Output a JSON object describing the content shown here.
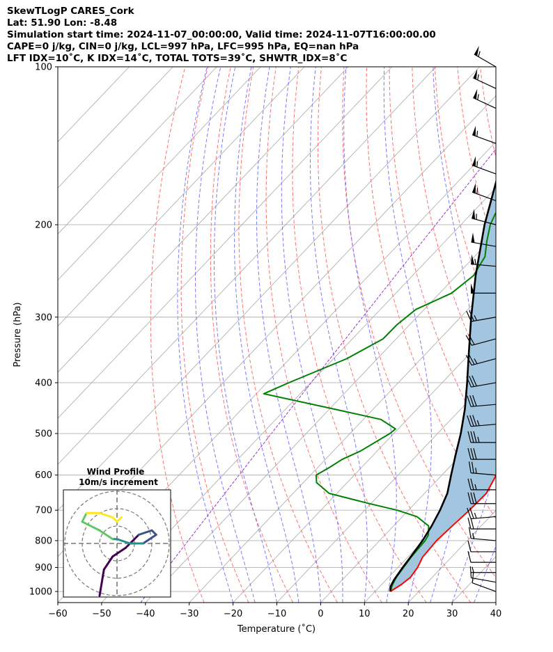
{
  "header": {
    "line1": "SkewTLogP CARES_Cork",
    "line2": "Lat: 51.90   Lon: -8.48",
    "line3": "Simulation start time: 2024-11-07_00:00:00, Valid time: 2024-11-07T16:00:00.00",
    "line4": "CAPE=0 j/kg, CIN=0 j/kg, LCL=997 hPa, LFC=995 hPa, EQ=nan hPa",
    "line5": "LFT IDX=10˚C, K IDX=14˚C, TOTAL TOTS=39˚C, SHWTR_IDX=8˚C"
  },
  "chart_data": {
    "type": "line",
    "subtype": "skew-T log-P",
    "xlabel": "Temperature (˚C)",
    "ylabel": "Pressure (hPa)",
    "xlim": [
      -60,
      40
    ],
    "ylim": [
      1050,
      100
    ],
    "y_scale": "log",
    "x_ticks": [
      -60,
      -50,
      -40,
      -30,
      -20,
      -10,
      0,
      10,
      20,
      30,
      40
    ],
    "y_ticks": [
      1000,
      900,
      800,
      700,
      600,
      500,
      400,
      300,
      200,
      100
    ],
    "grid": true,
    "series": [
      {
        "key": "temperature",
        "color": "#ff0000",
        "points": [
          [
            1000,
            13.5
          ],
          [
            970,
            14.5
          ],
          [
            940,
            15.0
          ],
          [
            900,
            14.5
          ],
          [
            860,
            13.4
          ],
          [
            800,
            13.0
          ],
          [
            750,
            13.4
          ],
          [
            700,
            13.9
          ],
          [
            650,
            14.1
          ],
          [
            600,
            12.4
          ],
          [
            560,
            10.4
          ],
          [
            530,
            8.1
          ],
          [
            500,
            6.3
          ],
          [
            470,
            4.6
          ],
          [
            440,
            3.7
          ],
          [
            410,
            1.6
          ],
          [
            380,
            -1.6
          ],
          [
            350,
            -5.6
          ],
          [
            320,
            -10.0
          ],
          [
            290,
            -15.2
          ],
          [
            270,
            -19.1
          ],
          [
            250,
            -21.6
          ],
          [
            230,
            -23.4
          ],
          [
            215,
            -27.2
          ],
          [
            200,
            -31.3
          ],
          [
            190,
            -33.5
          ],
          [
            180,
            -34.5
          ],
          [
            170,
            -33.0
          ],
          [
            160,
            -34.8
          ],
          [
            150,
            -36.7
          ],
          [
            140,
            -39.8
          ],
          [
            130,
            -42.0
          ],
          [
            120,
            -45.5
          ],
          [
            110,
            -49.4
          ],
          [
            100,
            -54.1
          ]
        ]
      },
      {
        "key": "dewpoint",
        "color": "#008000",
        "points": [
          [
            1000,
            13.5
          ],
          [
            970,
            12.5
          ],
          [
            940,
            11.8
          ],
          [
            900,
            11.3
          ],
          [
            860,
            10.8
          ],
          [
            800,
            10.4
          ],
          [
            780,
            9.9
          ],
          [
            750,
            8.0
          ],
          [
            720,
            3.3
          ],
          [
            700,
            -2.6
          ],
          [
            680,
            -10.4
          ],
          [
            650,
            -21.8
          ],
          [
            620,
            -27.0
          ],
          [
            600,
            -28.7
          ],
          [
            580,
            -27.3
          ],
          [
            560,
            -26.2
          ],
          [
            540,
            -23.8
          ],
          [
            500,
            -20.9
          ],
          [
            490,
            -20.6
          ],
          [
            470,
            -26.0
          ],
          [
            450,
            -38.4
          ],
          [
            420,
            -58.3
          ],
          [
            400,
            -55.0
          ],
          [
            360,
            -47.0
          ],
          [
            330,
            -43.0
          ],
          [
            310,
            -42.9
          ],
          [
            290,
            -41.9
          ],
          [
            270,
            -37.3
          ],
          [
            250,
            -36.1
          ],
          [
            230,
            -37.6
          ],
          [
            215,
            -40.5
          ],
          [
            200,
            -43.3
          ],
          [
            190,
            -44.6
          ],
          [
            180,
            -44.3
          ],
          [
            165,
            -43.4
          ],
          [
            155,
            -41.4
          ],
          [
            145,
            -39.3
          ],
          [
            135,
            -38.5
          ],
          [
            125,
            -39.7
          ],
          [
            115,
            -43.0
          ],
          [
            100,
            -49.7
          ]
        ]
      },
      {
        "key": "parcel_profile",
        "color": "#000000",
        "points": [
          [
            1000,
            13.5
          ],
          [
            980,
            12.5
          ],
          [
            950,
            11.8
          ],
          [
            900,
            11.1
          ],
          [
            850,
            10.5
          ],
          [
            800,
            9.8
          ],
          [
            750,
            8.7
          ],
          [
            700,
            7.2
          ],
          [
            650,
            5.2
          ],
          [
            600,
            2.1
          ],
          [
            550,
            -1.2
          ],
          [
            500,
            -4.7
          ],
          [
            450,
            -9.0
          ],
          [
            400,
            -14.3
          ],
          [
            350,
            -20.5
          ],
          [
            300,
            -27.6
          ],
          [
            250,
            -35.6
          ],
          [
            200,
            -44.6
          ],
          [
            150,
            -54.8
          ],
          [
            125,
            -60.0
          ],
          [
            100,
            -66.3
          ]
        ]
      }
    ],
    "shaded_region": {
      "between": [
        "temperature",
        "parcel_profile"
      ],
      "color": "#a2c6e0"
    },
    "background_lines": {
      "isotherms_color": "#b0b0b0",
      "dry_adiabats_color": "#ff6060",
      "moist_adiabats_color": "#6b6bff",
      "mixing_ratio_color": "#9932cc"
    },
    "wind_barbs": {
      "pressures": [
        1000,
        960,
        920,
        880,
        840,
        800,
        760,
        720,
        680,
        640,
        600,
        560,
        520,
        480,
        440,
        400,
        360,
        330,
        300,
        270,
        240,
        220,
        200,
        180,
        160,
        140,
        120,
        110,
        100
      ],
      "speeds_kt": [
        12,
        10,
        8,
        10,
        12,
        15,
        20,
        25,
        30,
        25,
        25,
        30,
        35,
        35,
        30,
        30,
        25,
        20,
        25,
        50,
        55,
        50,
        55,
        55,
        55,
        55,
        55,
        55,
        55
      ],
      "directions_deg": [
        290,
        280,
        270,
        270,
        270,
        275,
        270,
        265,
        270,
        270,
        275,
        270,
        270,
        265,
        265,
        260,
        255,
        255,
        260,
        270,
        275,
        280,
        285,
        290,
        290,
        290,
        295,
        295,
        300
      ]
    },
    "hodograph": {
      "title": "Wind Profile",
      "subtitle": "10m/s increment",
      "ring_step_ms": 10,
      "points_uv": [
        [
          -4,
          -12
        ],
        [
          -3,
          -6
        ],
        [
          -1,
          -3
        ],
        [
          2,
          -1
        ],
        [
          5,
          2
        ],
        [
          8,
          3
        ],
        [
          9,
          2
        ],
        [
          6,
          0
        ],
        [
          3,
          0
        ],
        [
          0,
          1
        ],
        [
          -1,
          1
        ],
        [
          -4,
          3
        ],
        [
          -8,
          5
        ],
        [
          -7,
          7
        ],
        [
          -4,
          7
        ],
        [
          -1,
          6
        ],
        [
          0,
          5
        ],
        [
          1,
          6
        ]
      ],
      "colormap": [
        "#440154",
        "#3b528b",
        "#21918c",
        "#5ec962",
        "#fde725"
      ]
    }
  }
}
